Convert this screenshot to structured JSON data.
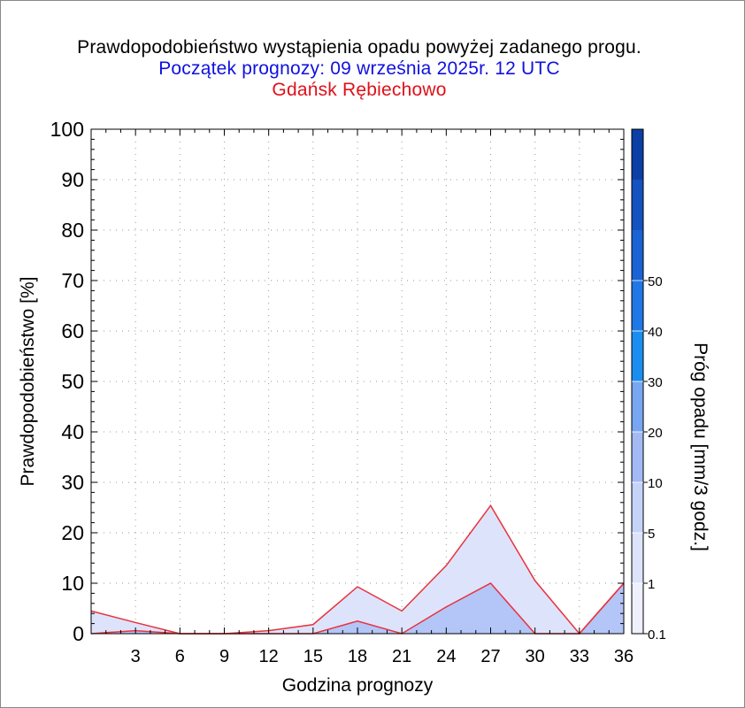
{
  "chart_data": {
    "type": "area",
    "title": "Prawdopodobieństwo wystąpienia opadu powyżej zadanego progu.",
    "subtitle": "Początek prognozy: 09 września 2025r. 12 UTC",
    "location": "Gdańsk Rębiechowo",
    "xlabel": "Godzina prognozy",
    "ylabel": "Prawdopodobieństwo [%]",
    "xlim": [
      0,
      36
    ],
    "ylim": [
      0,
      100
    ],
    "x_ticks": [
      3,
      6,
      9,
      12,
      15,
      18,
      21,
      24,
      27,
      30,
      33,
      36
    ],
    "y_ticks": [
      0,
      10,
      20,
      30,
      40,
      50,
      60,
      70,
      80,
      90,
      100
    ],
    "grid": true,
    "x": [
      0,
      3,
      6,
      9,
      12,
      15,
      18,
      21,
      24,
      27,
      30,
      33,
      36
    ],
    "series": [
      {
        "name": "0.1",
        "color": "#dde3fb",
        "values": [
          4.5,
          2.2,
          0,
          0,
          0.6,
          1.8,
          9.3,
          4.5,
          13.5,
          25.4,
          10.5,
          0,
          10.0
        ]
      },
      {
        "name": "1",
        "color": "#b4c5f8",
        "values": [
          0,
          0.6,
          0,
          0,
          0,
          0,
          2.5,
          0,
          5.3,
          10.0,
          0,
          0,
          10.0
        ]
      }
    ],
    "colorbar": {
      "label": "Próg opadu [mm/3 godz.]",
      "labels": [
        "0.1",
        "1",
        "5",
        "10",
        "20",
        "30",
        "40",
        "50"
      ],
      "colors": [
        "#eef0fc",
        "#dde3fb",
        "#c6d3f9",
        "#a3baf5",
        "#77a7f2",
        "#1a8ef0",
        "#1f78e6",
        "#1a63d4",
        "#1452c0",
        "#0c3fa6"
      ]
    }
  }
}
